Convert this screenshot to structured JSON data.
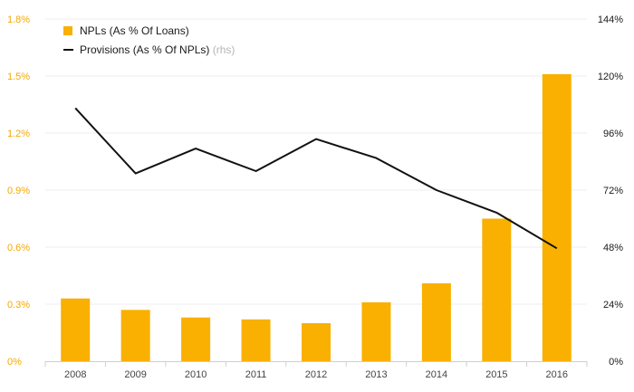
{
  "chart_data": {
    "type": "bar+line",
    "categories": [
      "2008",
      "2009",
      "2010",
      "2011",
      "2012",
      "2013",
      "2014",
      "2015",
      "2016"
    ],
    "series": [
      {
        "name": "NPLs (As % Of Loans)",
        "type": "bar",
        "axis": "left",
        "color": "#f9b000",
        "values": [
          0.33,
          0.27,
          0.23,
          0.22,
          0.2,
          0.31,
          0.41,
          0.75,
          1.51
        ]
      },
      {
        "name": "Provisions (As % Of NPLs)",
        "name_note": "(rhs)",
        "type": "line",
        "axis": "right",
        "color": "#111111",
        "values": [
          106.5,
          79,
          89.5,
          80,
          93.5,
          85.5,
          72,
          62.5,
          47.5
        ]
      }
    ],
    "y_left": {
      "ylim": [
        0,
        1.8
      ],
      "ticks": [
        0,
        0.3,
        0.6,
        0.9,
        1.2,
        1.5,
        1.8
      ],
      "tick_labels": [
        "0%",
        "0.3%",
        "0.6%",
        "0.9%",
        "1.2%",
        "1.5%",
        "1.8%"
      ],
      "color": "#f5a800"
    },
    "y_right": {
      "ylim": [
        0,
        144
      ],
      "ticks": [
        0,
        24,
        48,
        72,
        96,
        120,
        144
      ],
      "tick_labels": [
        "0%",
        "24%",
        "48%",
        "72%",
        "96%",
        "120%",
        "144%"
      ],
      "color": "#1a1a1a"
    },
    "grid": true,
    "legend": "top-left"
  }
}
